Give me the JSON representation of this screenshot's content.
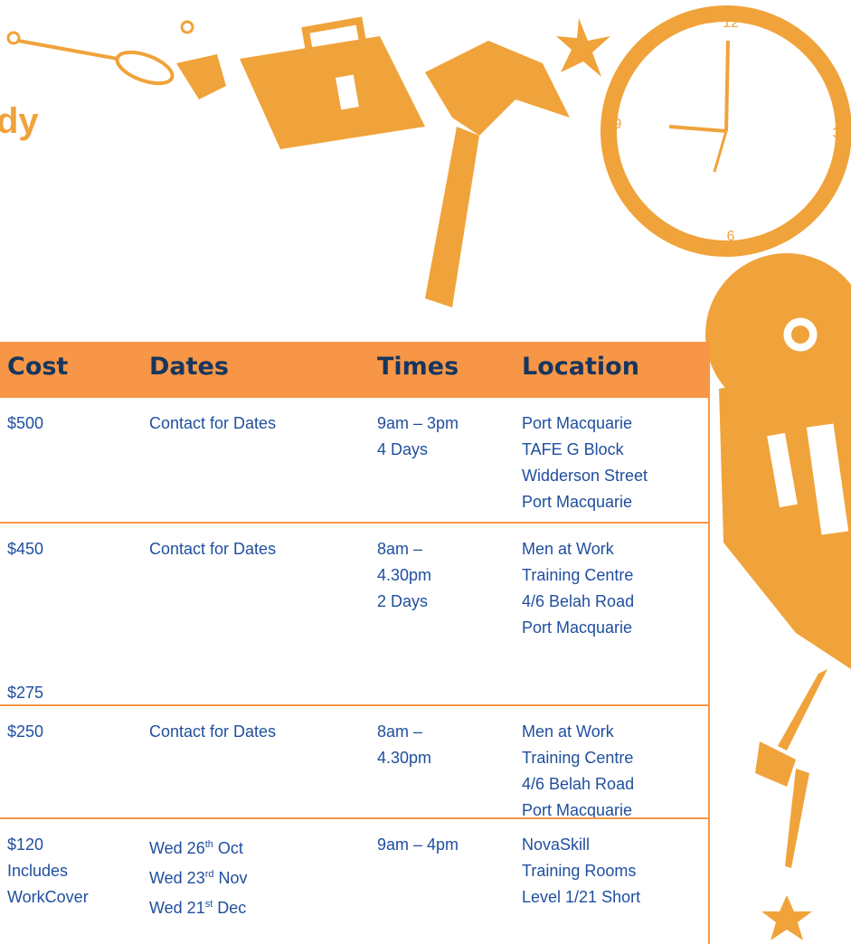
{
  "heading_fragment": "dy",
  "clock": {
    "labels": [
      "12",
      "3",
      "6",
      "9"
    ]
  },
  "table": {
    "headers": [
      "Cost",
      "Dates",
      "Times",
      "Location"
    ],
    "rows": [
      {
        "cost": [
          "$500"
        ],
        "dates": [
          [
            "Contact for Dates"
          ]
        ],
        "times": [
          "9am – 3pm",
          "4 Days"
        ],
        "location": [
          "Port Macquarie",
          "TAFE G Block",
          "Widderson Street",
          "Port Macquarie"
        ]
      },
      {
        "cost": [
          "$450"
        ],
        "cost_footer": "$275",
        "dates": [
          [
            "Contact for Dates"
          ]
        ],
        "times": [
          "8am –",
          "4.30pm",
          "2 Days"
        ],
        "location": [
          "Men at Work",
          "Training Centre",
          "4/6 Belah Road",
          "Port Macquarie"
        ]
      },
      {
        "cost": [
          "$250"
        ],
        "dates": [
          [
            "Contact for Dates"
          ]
        ],
        "times": [
          "8am –",
          "4.30pm"
        ],
        "location": [
          "Men at Work",
          "Training Centre",
          "4/6 Belah Road",
          "Port Macquarie"
        ]
      },
      {
        "cost": [
          "$120",
          "Includes",
          "WorkCover"
        ],
        "dates": [
          [
            "Wed 26",
            "th",
            " Oct"
          ],
          [
            "Wed 23",
            "rd",
            " Nov"
          ],
          [
            "Wed 21",
            "st",
            " Dec"
          ]
        ],
        "times": [
          "9am – 4pm"
        ],
        "location": [
          "NovaSkill",
          "Training Rooms",
          "Level 1/21 Short"
        ]
      }
    ]
  }
}
